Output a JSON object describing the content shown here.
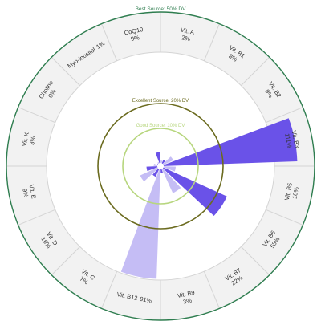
{
  "colors": {
    "outer_ring": "#2e7d4f",
    "excellent_ring": "#6b6b1f",
    "good_ring": "#b7d67e",
    "ring_band": "#f2f2f2",
    "divider": "#d4d4d4",
    "text": "#333333",
    "bar_strong": "#6a52e8",
    "bar_light": "#c5bdf5"
  },
  "chart_data": {
    "type": "radial-bar",
    "title": "",
    "unit": "% DV",
    "thresholds": [
      {
        "label": "Best Source: 50% DV",
        "value": 50
      },
      {
        "label": "Excellent Source: 20% DV",
        "value": 20
      },
      {
        "label": "Good Source: 10% DV",
        "value": 10
      }
    ],
    "categories": [
      {
        "name": "Vit. A",
        "value": 2,
        "label": "2%"
      },
      {
        "name": "Vit. B1",
        "value": 3,
        "label": "3%"
      },
      {
        "name": "Vit. B2",
        "value": 9,
        "label": "9%"
      },
      {
        "name": "Vit. B3",
        "value": 111,
        "label": "111%"
      },
      {
        "name": "Vit. B5",
        "value": 10,
        "label": "10%"
      },
      {
        "name": "Vit. B6",
        "value": 58,
        "label": "58%"
      },
      {
        "name": "Vit. B7",
        "value": 22,
        "label": "22%"
      },
      {
        "name": "Vit. B9",
        "value": 3,
        "label": "3%"
      },
      {
        "name": "Vit. B12",
        "value": 91,
        "label": "91%"
      },
      {
        "name": "Vit. C",
        "value": 7,
        "label": "7%"
      },
      {
        "name": "Vit. D",
        "value": 16,
        "label": "16%"
      },
      {
        "name": "Vit. E",
        "value": 9,
        "label": "9%"
      },
      {
        "name": "Vit. K",
        "value": 3,
        "label": "3%"
      },
      {
        "name": "Choline",
        "value": 0,
        "label": "0%"
      },
      {
        "name": "Myo-inositol",
        "value": 1,
        "label": "1%"
      },
      {
        "name": "CoQ10",
        "value": 9,
        "label": "9%"
      }
    ]
  }
}
